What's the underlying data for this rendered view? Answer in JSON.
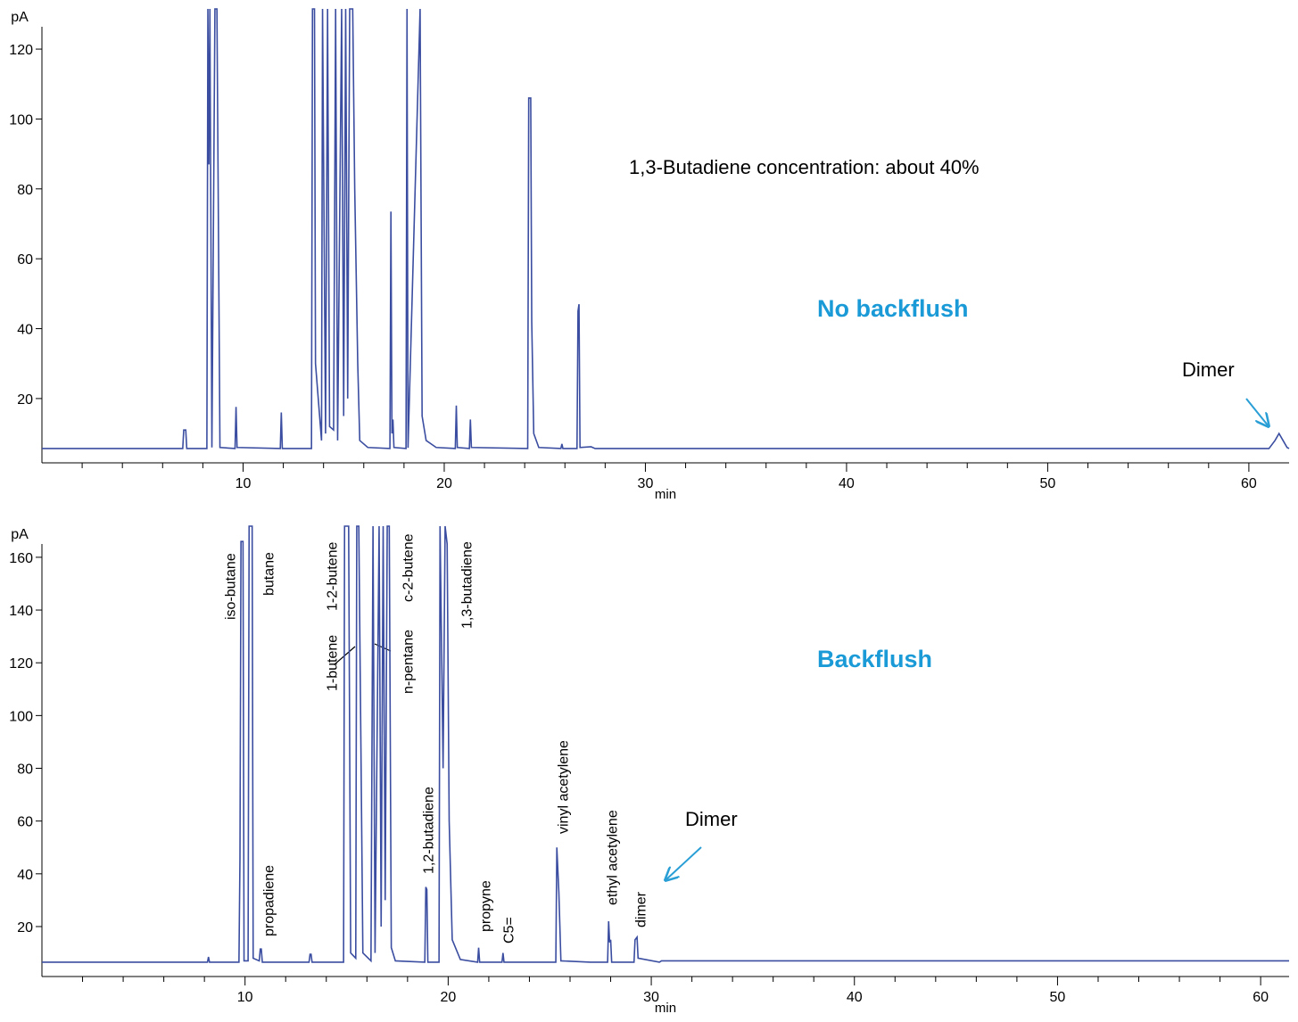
{
  "chart_data": [
    {
      "type": "line",
      "y_label": "pA",
      "x_label": "min",
      "color": "#3a4da0",
      "xlim": [
        0,
        62
      ],
      "ylim": [
        1.6,
        131.5
      ],
      "xticks": [
        10,
        20,
        30,
        40,
        50,
        60
      ],
      "xminor_ticks": [
        2,
        4,
        6,
        8,
        12,
        14,
        16,
        18,
        22,
        24,
        26,
        28,
        32,
        34,
        36,
        38,
        42,
        44,
        46,
        48,
        52,
        54,
        56,
        58
      ],
      "yticks": [
        20,
        40,
        60,
        80,
        100,
        120
      ],
      "x": [
        0,
        7.0,
        7.05,
        7.15,
        7.2,
        8.2,
        8.25,
        8.3,
        8.35,
        8.45,
        8.6,
        8.7,
        8.8,
        8.85,
        9.6,
        9.65,
        9.7,
        11.85,
        11.9,
        11.95,
        13.4,
        13.45,
        13.55,
        13.6,
        13.9,
        13.95,
        14.1,
        14.2,
        14.3,
        14.5,
        14.6,
        14.7,
        14.9,
        15.0,
        15.1,
        15.2,
        15.3,
        15.45,
        15.55,
        15.7,
        15.8,
        16.2,
        17.3,
        17.35,
        17.4,
        17.45,
        17.5,
        18.1,
        18.15,
        18.2,
        18.8,
        18.9,
        19.1,
        19.6,
        20.55,
        20.6,
        20.65,
        21.25,
        21.3,
        21.35,
        24.15,
        24.2,
        24.3,
        24.35,
        24.45,
        24.7,
        25.8,
        25.85,
        25.9,
        26.6,
        26.65,
        26.7,
        26.75,
        27.3,
        27.5,
        61.0,
        61.3,
        61.5,
        61.7,
        61.9,
        62
      ],
      "values": [
        5.7,
        5.7,
        11,
        11,
        5.7,
        5.7,
        131.5,
        87,
        131.5,
        6,
        131.5,
        131.5,
        48,
        6,
        5.7,
        17.6,
        6,
        5.7,
        16,
        5.7,
        5.7,
        131.5,
        131.5,
        30,
        8,
        131.5,
        10,
        131.5,
        12,
        11,
        131.5,
        8,
        131.5,
        15,
        131.5,
        20,
        131.5,
        131.5,
        80,
        30,
        8,
        6,
        5.7,
        73.5,
        10,
        14,
        6,
        5.7,
        131.5,
        5.9,
        131.5,
        15,
        8,
        6,
        5.7,
        18,
        6,
        5.7,
        14,
        6,
        5.7,
        106,
        106,
        42,
        10,
        6,
        5.7,
        7,
        5.7,
        5.7,
        45,
        47,
        6,
        6.2,
        5.7,
        5.7,
        8,
        10,
        8,
        6,
        5.7
      ],
      "annotations": [
        {
          "text": "1,3-Butadiene concentration: about 40%",
          "color": "#000000"
        },
        {
          "text": "No backflush",
          "color": "#1a9ad6"
        },
        {
          "text": "Dimer",
          "color": "#000000"
        }
      ]
    },
    {
      "type": "line",
      "y_label": "pA",
      "x_label": "min",
      "color": "#3a4da0",
      "xlim": [
        0,
        61.4
      ],
      "ylim": [
        1.06,
        171.8
      ],
      "xticks": [
        10,
        20,
        30,
        40,
        50,
        60
      ],
      "xminor_ticks": [
        2,
        4,
        6,
        8,
        12,
        14,
        16,
        18,
        22,
        24,
        26,
        28,
        32,
        34,
        36,
        38,
        42,
        44,
        46,
        48,
        52,
        54,
        56,
        58
      ],
      "yticks": [
        20,
        40,
        60,
        80,
        100,
        120,
        140,
        160
      ],
      "x": [
        0,
        8.15,
        8.2,
        8.25,
        9.7,
        9.75,
        9.8,
        9.9,
        9.95,
        10.15,
        10.2,
        10.35,
        10.4,
        10.7,
        10.75,
        10.8,
        10.85,
        13.15,
        13.2,
        13.25,
        13.3,
        14.85,
        14.9,
        15.1,
        15.2,
        15.45,
        15.5,
        15.6,
        15.7,
        15.8,
        16.2,
        16.3,
        16.4,
        16.6,
        16.7,
        16.8,
        16.9,
        17.0,
        17.1,
        17.2,
        17.4,
        18.0,
        18.85,
        18.9,
        18.95,
        19.0,
        19.55,
        19.6,
        19.75,
        19.85,
        19.95,
        20.05,
        20.2,
        20.6,
        21.45,
        21.5,
        21.55,
        22.65,
        22.7,
        22.75,
        25.3,
        25.35,
        25.45,
        25.55,
        27.0,
        27.85,
        27.9,
        27.95,
        28.0,
        28.05,
        29.15,
        29.2,
        29.3,
        29.35,
        30.4,
        30.5,
        61.4
      ],
      "values": [
        6.5,
        6.5,
        8.5,
        6.5,
        6.5,
        46,
        166,
        166,
        7,
        7,
        171.8,
        171.8,
        8,
        7,
        11.5,
        11.5,
        6.5,
        6.5,
        9.5,
        9.5,
        6.5,
        6.5,
        171.8,
        171.8,
        10,
        8,
        171.8,
        171.8,
        92,
        10,
        7,
        171.8,
        10,
        171.8,
        20,
        171.8,
        30,
        171.8,
        171.8,
        12,
        7,
        6.8,
        6.5,
        35,
        34,
        6.5,
        6.5,
        171.8,
        80,
        171.8,
        165,
        60,
        15,
        7.5,
        6.5,
        12,
        6.5,
        6.5,
        10,
        6.5,
        6.5,
        50,
        33,
        7,
        6.5,
        6.5,
        22,
        14,
        15,
        6.5,
        6.5,
        15,
        16,
        8,
        6.5,
        7,
        7
      ],
      "annotations": [
        {
          "text": "Backflush",
          "color": "#1a9ad6"
        },
        {
          "text": "Dimer",
          "color": "#000000"
        }
      ],
      "peak_labels": [
        "iso-butane",
        "butane",
        "propadiene",
        "1-butene",
        "1-2-butene",
        "c-2-butene",
        "n-pentane",
        "1,2-butadiene",
        "1,3-butadiene",
        "propyne",
        "C5=",
        "vinyl acetylene",
        "ethyl acetylene",
        "dimer"
      ]
    }
  ]
}
